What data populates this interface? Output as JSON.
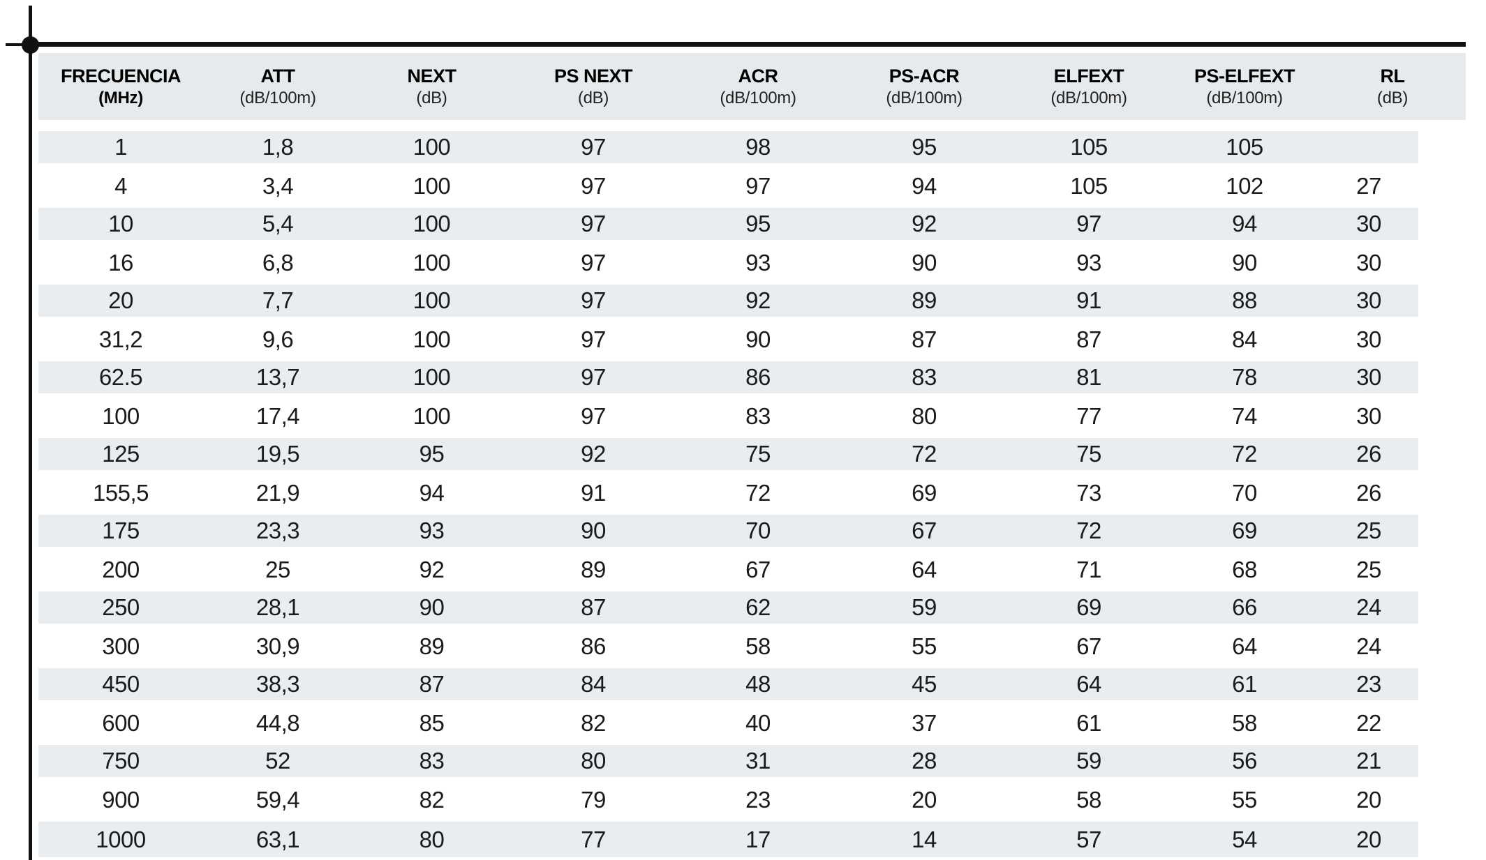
{
  "colors": {
    "row_band": "#e9edf0",
    "header_band": "#e7eaec",
    "ink": "#1b1b1b",
    "mark": "#111111"
  },
  "marks": {
    "registration_dot": "filled-circle",
    "crop_mark_vertical": "black-rule",
    "crop_mark_horizontal": "black-rule",
    "table_top_rule": "black-rule"
  },
  "table": {
    "columns": [
      {
        "name": "FRECUENCIA",
        "unit": "(MHz)",
        "unit_bold": true
      },
      {
        "name": "ATT",
        "unit": "(dB/100m)"
      },
      {
        "name": "NEXT",
        "unit": "(dB)"
      },
      {
        "name": "PS NEXT",
        "unit": "(dB)"
      },
      {
        "name": "ACR",
        "unit": "(dB/100m)"
      },
      {
        "name": "PS-ACR",
        "unit": "(dB/100m)"
      },
      {
        "name": "ELFEXT",
        "unit": "(dB/100m)"
      },
      {
        "name": "PS-ELFEXT",
        "unit": "(dB/100m)"
      },
      {
        "name": "RL",
        "unit": "(dB)"
      }
    ],
    "rows": [
      [
        "1",
        "1,8",
        "100",
        "97",
        "98",
        "95",
        "105",
        "105",
        ""
      ],
      [
        "4",
        "3,4",
        "100",
        "97",
        "97",
        "94",
        "105",
        "102",
        "27"
      ],
      [
        "10",
        "5,4",
        "100",
        "97",
        "95",
        "92",
        "97",
        "94",
        "30"
      ],
      [
        "16",
        "6,8",
        "100",
        "97",
        "93",
        "90",
        "93",
        "90",
        "30"
      ],
      [
        "20",
        "7,7",
        "100",
        "97",
        "92",
        "89",
        "91",
        "88",
        "30"
      ],
      [
        "31,2",
        "9,6",
        "100",
        "97",
        "90",
        "87",
        "87",
        "84",
        "30"
      ],
      [
        "62.5",
        "13,7",
        "100",
        "97",
        "86",
        "83",
        "81",
        "78",
        "30"
      ],
      [
        "100",
        "17,4",
        "100",
        "97",
        "83",
        "80",
        "77",
        "74",
        "30"
      ],
      [
        "125",
        "19,5",
        "95",
        "92",
        "75",
        "72",
        "75",
        "72",
        "26"
      ],
      [
        "155,5",
        "21,9",
        "94",
        "91",
        "72",
        "69",
        "73",
        "70",
        "26"
      ],
      [
        "175",
        "23,3",
        "93",
        "90",
        "70",
        "67",
        "72",
        "69",
        "25"
      ],
      [
        "200",
        "25",
        "92",
        "89",
        "67",
        "64",
        "71",
        "68",
        "25"
      ],
      [
        "250",
        "28,1",
        "90",
        "87",
        "62",
        "59",
        "69",
        "66",
        "24"
      ],
      [
        "300",
        "30,9",
        "89",
        "86",
        "58",
        "55",
        "67",
        "64",
        "24"
      ],
      [
        "450",
        "38,3",
        "87",
        "84",
        "48",
        "45",
        "64",
        "61",
        "23"
      ],
      [
        "600",
        "44,8",
        "85",
        "82",
        "40",
        "37",
        "61",
        "58",
        "22"
      ],
      [
        "750",
        "52",
        "83",
        "80",
        "31",
        "28",
        "59",
        "56",
        "21"
      ],
      [
        "900",
        "59,4",
        "82",
        "79",
        "23",
        "20",
        "58",
        "55",
        "20"
      ],
      [
        "1000",
        "63,1",
        "80",
        "77",
        "17",
        "14",
        "57",
        "54",
        "20"
      ]
    ]
  }
}
